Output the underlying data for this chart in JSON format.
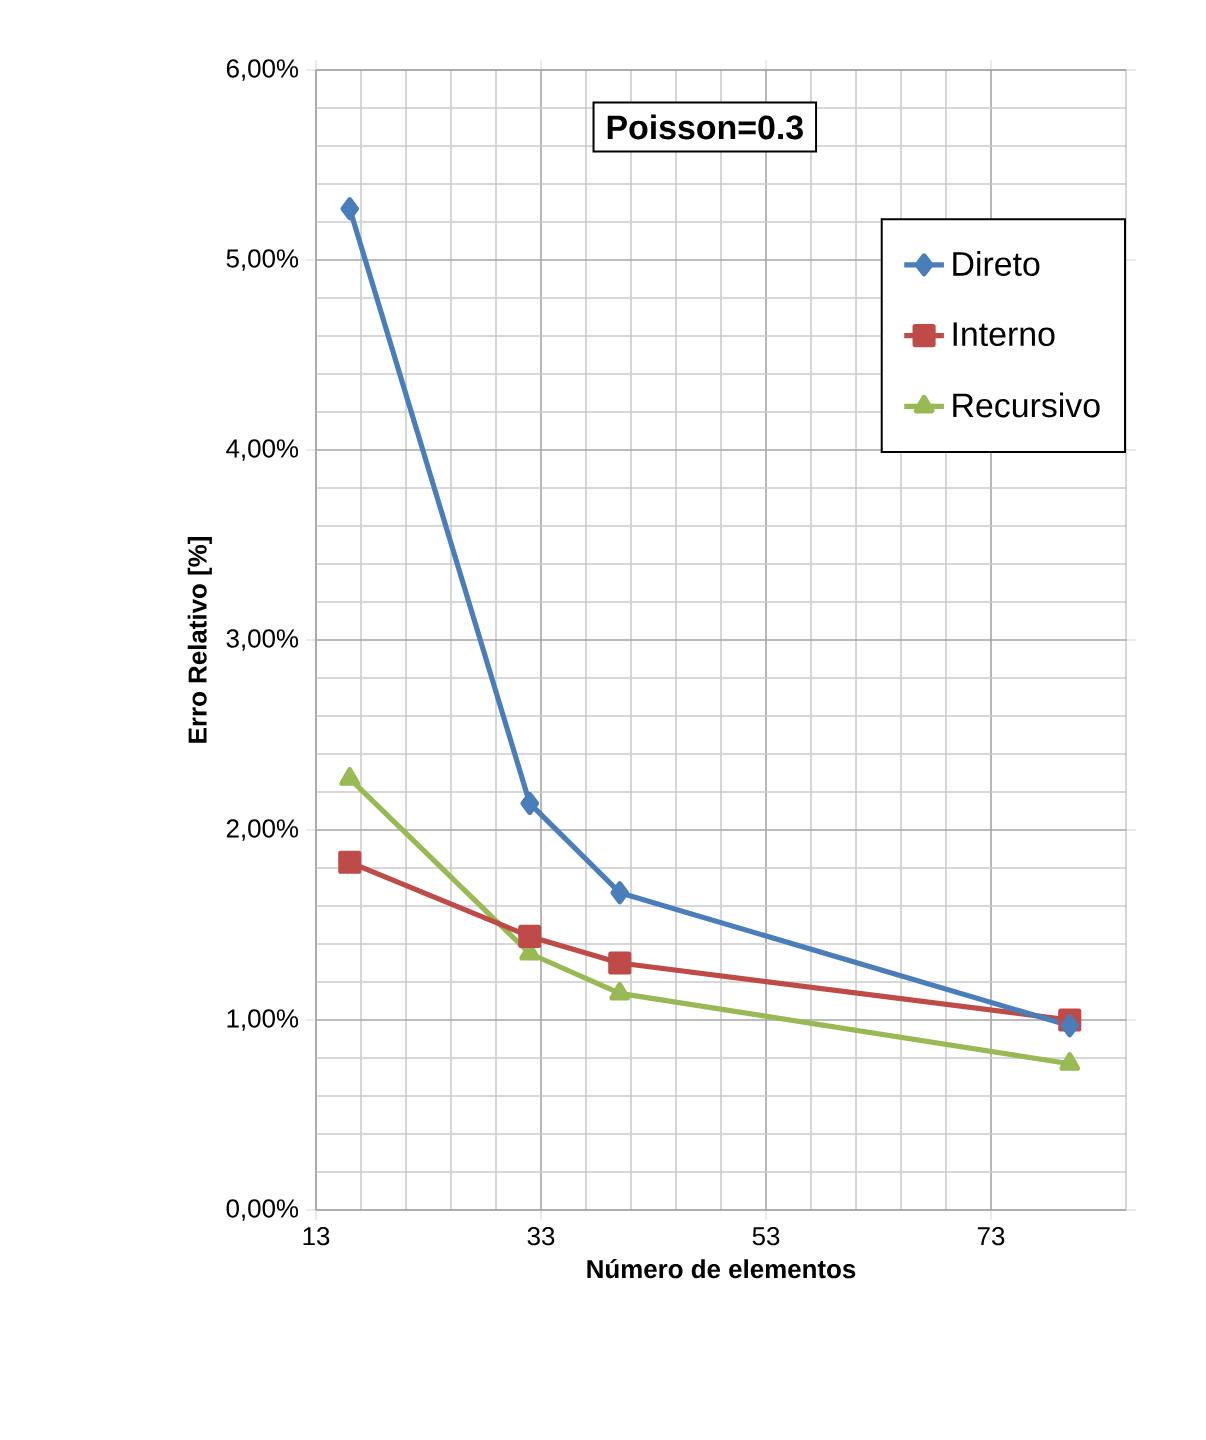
{
  "chart_data": {
    "type": "line",
    "xlabel": "Número de elementos",
    "ylabel": "Erro Relativo [%]",
    "annotations": [
      "Poisson=0.3"
    ],
    "xlim": [
      13,
      85
    ],
    "xticks": [
      13,
      33,
      53,
      73
    ],
    "ylim": [
      0,
      0.06
    ],
    "yticks": [
      {
        "value": 0,
        "label": "0,00%"
      },
      {
        "value": 0.01,
        "label": "1,00%"
      },
      {
        "value": 0.02,
        "label": "2,00%"
      },
      {
        "value": 0.03,
        "label": "3,00%"
      },
      {
        "value": 0.04,
        "label": "4,00%"
      },
      {
        "value": 0.05,
        "label": "5,00%"
      },
      {
        "value": 0.06,
        "label": "6,00%"
      }
    ],
    "grid": true,
    "legend": "top right",
    "line_style": "solid",
    "series": [
      {
        "name": "Direto",
        "color": "#4a7ebb",
        "marker": "diamond",
        "x": [
          16,
          32,
          40,
          80
        ],
        "values": [
          0.0527,
          0.0214,
          0.0167,
          0.0097
        ]
      },
      {
        "name": "Interno",
        "color": "#be4b48",
        "marker": "square",
        "x": [
          16,
          32,
          40,
          80
        ],
        "values": [
          0.0183,
          0.0144,
          0.013,
          0.01
        ]
      },
      {
        "name": "Recursivo",
        "color": "#98b954",
        "marker": "triangle",
        "x": [
          16,
          32,
          40,
          80
        ],
        "values": [
          0.0227,
          0.0135,
          0.0114,
          0.0077
        ]
      }
    ]
  }
}
